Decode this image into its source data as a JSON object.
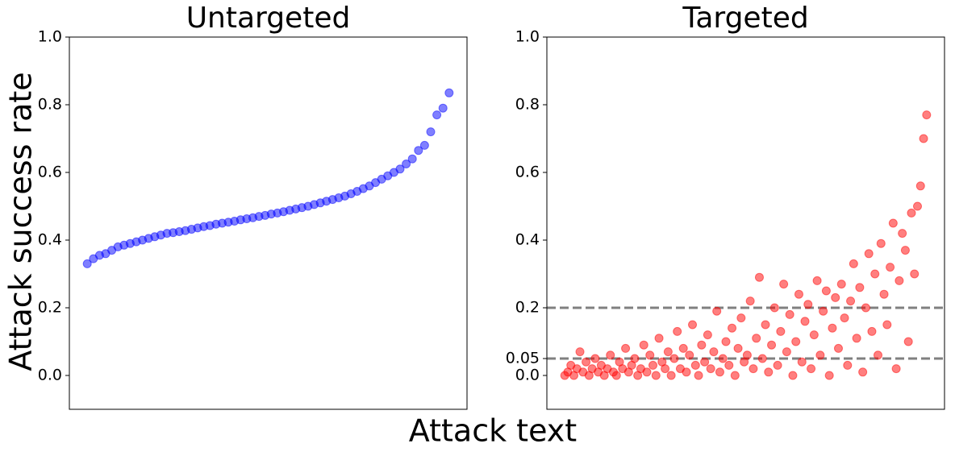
{
  "figure": {
    "xlabel": "Attack text",
    "ylabel": "Attack success rate"
  },
  "chart_data": [
    {
      "type": "scatter",
      "title": "Untargeted",
      "color": "#0000ff",
      "ylim": [
        -0.1,
        1.0
      ],
      "yticks": [
        {
          "value": 0,
          "label": "0.0"
        },
        0.2,
        0.4,
        0.6,
        0.8,
        {
          "value": 1,
          "label": "1.0"
        }
      ],
      "values": [
        0.33,
        0.345,
        0.355,
        0.36,
        0.37,
        0.38,
        0.385,
        0.39,
        0.395,
        0.4,
        0.405,
        0.41,
        0.415,
        0.42,
        0.422,
        0.425,
        0.428,
        0.432,
        0.436,
        0.44,
        0.443,
        0.447,
        0.45,
        0.453,
        0.456,
        0.46,
        0.463,
        0.466,
        0.47,
        0.473,
        0.477,
        0.48,
        0.484,
        0.488,
        0.492,
        0.496,
        0.5,
        0.505,
        0.51,
        0.515,
        0.52,
        0.525,
        0.53,
        0.537,
        0.544,
        0.552,
        0.56,
        0.57,
        0.58,
        0.59,
        0.6,
        0.61,
        0.625,
        0.64,
        0.665,
        0.68,
        0.72,
        0.77,
        0.79,
        0.835
      ]
    },
    {
      "type": "scatter",
      "title": "Targeted",
      "color": "#ff0000",
      "ylim": [
        -0.1,
        1.0
      ],
      "yticks": [
        {
          "value": 0,
          "label": "0.0"
        },
        0.05,
        0.2,
        0.4,
        0.6,
        0.8,
        {
          "value": 1,
          "label": "1.0"
        }
      ],
      "hlines": [
        0.05,
        0.2
      ],
      "values": [
        0.0,
        0.01,
        0.03,
        0.0,
        0.02,
        0.07,
        0.01,
        0.04,
        0.0,
        0.02,
        0.05,
        0.01,
        0.03,
        0.0,
        0.02,
        0.06,
        0.01,
        0.0,
        0.04,
        0.02,
        0.08,
        0.01,
        0.03,
        0.05,
        0.0,
        0.02,
        0.09,
        0.01,
        0.06,
        0.03,
        0.0,
        0.11,
        0.04,
        0.02,
        0.07,
        0.0,
        0.05,
        0.13,
        0.02,
        0.08,
        0.01,
        0.06,
        0.15,
        0.03,
        0.0,
        0.09,
        0.04,
        0.12,
        0.02,
        0.07,
        0.19,
        0.01,
        0.05,
        0.1,
        0.03,
        0.14,
        0.0,
        0.08,
        0.17,
        0.04,
        0.06,
        0.22,
        0.02,
        0.11,
        0.29,
        0.05,
        0.15,
        0.01,
        0.09,
        0.2,
        0.03,
        0.13,
        0.27,
        0.07,
        0.18,
        0.0,
        0.1,
        0.24,
        0.04,
        0.16,
        0.21,
        0.02,
        0.12,
        0.28,
        0.06,
        0.19,
        0.25,
        0.0,
        0.14,
        0.23,
        0.08,
        0.27,
        0.17,
        0.03,
        0.22,
        0.33,
        0.11,
        0.26,
        0.01,
        0.2,
        0.36,
        0.13,
        0.3,
        0.06,
        0.39,
        0.24,
        0.15,
        0.32,
        0.45,
        0.02,
        0.28,
        0.42,
        0.37,
        0.1,
        0.48,
        0.3,
        0.5,
        0.56,
        0.7,
        0.77
      ]
    }
  ]
}
